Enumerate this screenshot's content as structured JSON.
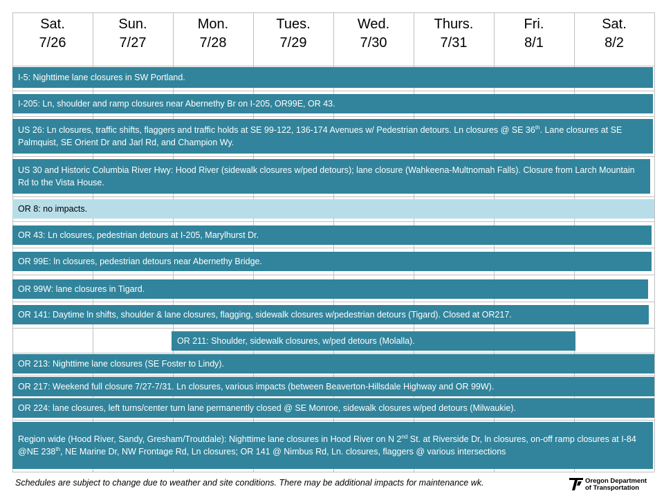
{
  "header": {
    "days": [
      {
        "name": "Sat.",
        "date": "7/26"
      },
      {
        "name": "Sun.",
        "date": "7/27"
      },
      {
        "name": "Mon.",
        "date": "7/28"
      },
      {
        "name": "Tues.",
        "date": "7/29"
      },
      {
        "name": "Wed.",
        "date": "7/30"
      },
      {
        "name": "Thurs.",
        "date": "7/31"
      },
      {
        "name": "Fri.",
        "date": "8/1"
      },
      {
        "name": "Sat.",
        "date": "8/2"
      }
    ]
  },
  "items": [
    {
      "parts": [
        {
          "text": "I-5: Nighttime lane closures in SW Portland."
        }
      ]
    },
    {
      "parts": [
        {
          "text": "I-205: Ln, shoulder and ramp closures near Abernethy Br on I-205, OR99E, OR 43."
        }
      ]
    },
    {
      "parts": [
        {
          "text": "US 26: Ln closures, traffic shifts, flaggers and traffic holds at SE 99-122, 136-174 Avenues w/ Pedestrian detours. Ln closures @ SE 36"
        },
        {
          "text": "th",
          "sup": true
        },
        {
          "text": ". Lane closures at SE Palmquist, SE Orient Dr and Jarl Rd, and Champion Wy."
        }
      ]
    },
    {
      "parts": [
        {
          "text": "US 30 and Historic Columbia River Hwy: Hood River (sidewalk closures w/ped detours); lane closure (Wahkeena-Multnomah Falls). Closure from Larch Mountain Rd to the Vista House."
        }
      ]
    },
    {
      "parts": [
        {
          "text": "OR 8: no impacts."
        }
      ]
    },
    {
      "parts": [
        {
          "text": "OR 43: Ln closures, pedestrian detours at I-205, Marylhurst Dr."
        }
      ]
    },
    {
      "parts": [
        {
          "text": "OR 99E: ln closures, pedestrian detours near Abernethy Bridge."
        }
      ]
    },
    {
      "parts": [
        {
          "text": "OR 99W: lane closures in Tigard."
        }
      ]
    },
    {
      "parts": [
        {
          "text": "OR 141: Daytime ln shifts, shoulder & lane closures, flagging, sidewalk closures w/pedestrian detours (Tigard). Closed at OR217."
        }
      ]
    },
    {
      "parts": [
        {
          "text": "OR 211: Shoulder, sidewalk closures, w/ped detours (Molalla)."
        }
      ]
    },
    {
      "parts": [
        {
          "text": "OR 213: Nighttime lane closures (SE Foster to Lindy)."
        }
      ]
    },
    {
      "parts": [
        {
          "text": "OR 217: Weekend full closure 7/27-7/31. Ln closures, various impacts (between Beaverton-Hillsdale Highway and OR 99W)."
        }
      ]
    },
    {
      "parts": [
        {
          "text": "OR 224: lane closures, left turns/center turn lane permanently closed @ SE Monroe, sidewalk closures w/ped detours (Milwaukie)."
        }
      ]
    },
    {
      "parts": [
        {
          "text": "Region wide (Hood River, Sandy, Gresham/Troutdale): Nighttime lane closures in Hood River on N 2"
        },
        {
          "text": "nd",
          "sup": true
        },
        {
          "text": " St. at Riverside Dr, ln closures, on-off ramp closures at I-84 @NE 238"
        },
        {
          "text": "th",
          "sup": true
        },
        {
          "text": ", NE Marine Dr, NW Frontage Rd, Ln closures; OR 141 @ Nimbus Rd, Ln. closures, flaggers @ various intersections"
        }
      ]
    }
  ],
  "footer": {
    "note": "Schedules are subject to change due to weather and site conditions. There may be additional impacts for maintenance wk.",
    "logo": [
      "Oregon Department",
      "of Transportation"
    ]
  }
}
